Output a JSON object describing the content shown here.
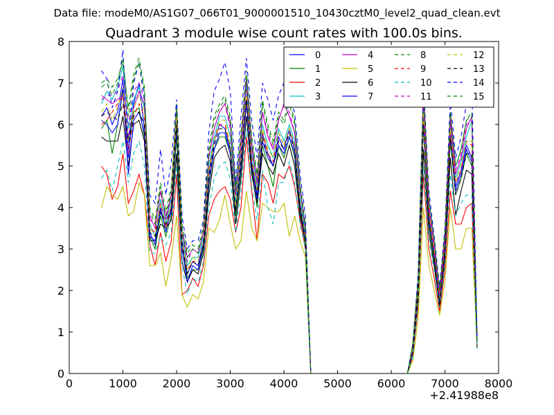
{
  "header_text": "Data file: modeM0/AS1G07_066T01_9000001510_10430cztM0_level2_quad_clean.evt",
  "chart_data": {
    "type": "line",
    "title": "Quadrant 3 module wise count rates with 100.0s bins.",
    "xlabel": "",
    "ylabel": "",
    "x_offset_label": "+2.41988e8",
    "xlim": [
      0,
      8000
    ],
    "ylim": [
      0,
      8
    ],
    "xticks": [
      "0",
      "1000",
      "2000",
      "3000",
      "4000",
      "5000",
      "6000",
      "7000",
      "8000"
    ],
    "yticks": [
      "0",
      "1",
      "2",
      "3",
      "4",
      "5",
      "6",
      "7",
      "8"
    ],
    "grid": false,
    "legend_position": "top-right",
    "legend_columns": 4,
    "x": [
      600,
      700,
      800,
      900,
      1000,
      1100,
      1200,
      1300,
      1400,
      1500,
      1600,
      1700,
      1800,
      1900,
      2000,
      2100,
      2200,
      2300,
      2400,
      2500,
      2600,
      2700,
      2800,
      2900,
      3000,
      3100,
      3200,
      3300,
      3400,
      3500,
      3600,
      3700,
      3800,
      3900,
      4000,
      4100,
      4200,
      4300,
      4400,
      4500,
      4600,
      4700,
      4800,
      4900,
      5000,
      5100,
      5200,
      5300,
      5400,
      5500,
      5600,
      5700,
      5800,
      5900,
      6000,
      6100,
      6200,
      6300,
      6400,
      6500,
      6600,
      6700,
      6800,
      6900,
      7000,
      7100,
      7200,
      7300,
      7400,
      7500,
      7600
    ],
    "series": [
      {
        "name": "0",
        "color": "#0000ff",
        "dash": "solid",
        "values": [
          6.2,
          6.4,
          6.0,
          6.3,
          7.1,
          5.2,
          6.5,
          7.0,
          5.9,
          3.4,
          3.1,
          4.0,
          3.4,
          4.0,
          6.0,
          3.2,
          2.4,
          2.7,
          2.6,
          3.2,
          4.8,
          5.6,
          6.0,
          5.9,
          5.4,
          4.0,
          5.2,
          6.9,
          5.1,
          4.3,
          5.8,
          5.3,
          5.0,
          5.7,
          5.4,
          5.9,
          5.4,
          4.1,
          3.3,
          0,
          0,
          0,
          0,
          0,
          0,
          0,
          0,
          0,
          0,
          0,
          0,
          0,
          0,
          0,
          0,
          0,
          0,
          0,
          0.6,
          2.0,
          6.2,
          3.8,
          2.8,
          1.7,
          3.0,
          5.8,
          4.5,
          4.9,
          5.5,
          5.2,
          0.7
        ]
      },
      {
        "name": "1",
        "color": "#008000",
        "dash": "solid",
        "values": [
          5.9,
          6.1,
          5.3,
          6.0,
          6.8,
          5.6,
          6.3,
          6.4,
          5.7,
          3.3,
          3.0,
          3.8,
          3.3,
          3.8,
          5.7,
          3.0,
          2.3,
          2.5,
          2.5,
          3.0,
          4.5,
          5.4,
          5.7,
          5.7,
          5.3,
          3.8,
          4.9,
          6.6,
          4.9,
          4.0,
          5.5,
          5.0,
          4.5,
          5.5,
          5.2,
          5.7,
          5.2,
          3.9,
          3.1,
          0,
          0,
          0,
          0,
          0,
          0,
          0,
          0,
          0,
          0,
          0,
          0,
          0,
          0,
          0,
          0,
          0,
          0,
          0,
          0.5,
          1.9,
          6.0,
          3.6,
          2.7,
          1.6,
          2.9,
          5.6,
          4.3,
          4.7,
          5.3,
          5.0,
          0.6
        ]
      },
      {
        "name": "2",
        "color": "#ff0000",
        "dash": "solid",
        "values": [
          5.0,
          4.8,
          4.2,
          4.5,
          5.3,
          4.1,
          4.4,
          4.8,
          4.3,
          3.1,
          2.6,
          3.4,
          2.7,
          3.2,
          4.8,
          1.9,
          2.0,
          2.3,
          2.1,
          2.6,
          3.8,
          4.2,
          4.4,
          4.5,
          4.2,
          3.4,
          4.0,
          5.7,
          4.4,
          3.2,
          4.8,
          4.6,
          4.1,
          4.8,
          4.7,
          5.0,
          4.5,
          3.7,
          3.0,
          0,
          0,
          0,
          0,
          0,
          0,
          0,
          0,
          0,
          0,
          0,
          0,
          0,
          0,
          0,
          0,
          0,
          0,
          0,
          0.4,
          1.6,
          4.8,
          3.0,
          2.3,
          1.5,
          2.5,
          4.4,
          3.6,
          3.6,
          4.0,
          4.1,
          0.6
        ]
      },
      {
        "name": "3",
        "color": "#00bfbf",
        "dash": "solid",
        "values": [
          6.5,
          6.8,
          6.6,
          6.9,
          7.4,
          5.9,
          6.6,
          6.9,
          6.4,
          3.6,
          3.3,
          4.2,
          3.6,
          4.2,
          6.4,
          3.3,
          2.6,
          2.8,
          2.8,
          3.3,
          5.0,
          5.7,
          6.2,
          6.2,
          5.7,
          4.1,
          5.4,
          7.0,
          5.3,
          4.5,
          6.0,
          5.5,
          5.2,
          5.9,
          5.6,
          6.0,
          5.6,
          4.2,
          3.4,
          0,
          0,
          0,
          0,
          0,
          0,
          0,
          0,
          0,
          0,
          0,
          0,
          0,
          0,
          0,
          0,
          0,
          0,
          0,
          0.6,
          2.1,
          6.4,
          3.9,
          2.9,
          1.8,
          3.1,
          6.0,
          4.7,
          5.1,
          5.7,
          6.1,
          0.7
        ]
      },
      {
        "name": "4",
        "color": "#bf00bf",
        "dash": "solid",
        "values": [
          6.7,
          6.6,
          6.5,
          6.6,
          6.7,
          5.7,
          6.4,
          6.8,
          6.5,
          3.8,
          3.5,
          4.4,
          3.7,
          4.3,
          6.3,
          3.4,
          2.8,
          3.0,
          2.9,
          3.4,
          5.2,
          5.9,
          6.3,
          6.5,
          6.0,
          4.3,
          5.5,
          7.1,
          5.5,
          4.6,
          6.3,
          5.7,
          5.4,
          6.1,
          6.5,
          6.2,
          5.8,
          4.4,
          3.5,
          0,
          0,
          0,
          0,
          0,
          0,
          0,
          0,
          0,
          0,
          0,
          0,
          0,
          0,
          0,
          0,
          0,
          0,
          0,
          0.6,
          2.2,
          6.6,
          4.0,
          3.0,
          1.9,
          3.2,
          6.1,
          4.8,
          5.2,
          5.9,
          6.2,
          0.8
        ]
      },
      {
        "name": "5",
        "color": "#bfbf00",
        "dash": "solid",
        "values": [
          4.0,
          4.5,
          4.3,
          4.2,
          4.5,
          3.8,
          3.9,
          4.6,
          4.3,
          2.6,
          2.6,
          2.9,
          2.1,
          2.8,
          3.8,
          1.9,
          1.6,
          1.9,
          1.8,
          2.2,
          3.5,
          3.4,
          3.7,
          4.3,
          3.6,
          3.0,
          3.2,
          4.4,
          3.5,
          3.2,
          4.1,
          4.0,
          3.9,
          3.9,
          4.1,
          3.3,
          3.8,
          3.2,
          2.8,
          0,
          0,
          0,
          0,
          0,
          0,
          0,
          0,
          0,
          0,
          0,
          0,
          0,
          0,
          0,
          0,
          0,
          0,
          0,
          0.3,
          1.3,
          4.0,
          2.6,
          2.0,
          1.4,
          2.2,
          4.0,
          3.0,
          3.0,
          3.5,
          3.5,
          0.6
        ]
      },
      {
        "name": "6",
        "color": "#000000",
        "dash": "solid",
        "values": [
          5.7,
          5.6,
          5.6,
          5.6,
          6.2,
          5.0,
          6.0,
          6.1,
          5.6,
          3.2,
          3.2,
          3.6,
          3.5,
          3.7,
          5.3,
          2.7,
          2.2,
          2.5,
          2.4,
          2.9,
          4.3,
          5.2,
          5.4,
          5.5,
          5.1,
          3.6,
          4.7,
          6.2,
          4.8,
          4.1,
          5.3,
          5.0,
          4.8,
          5.3,
          5.0,
          5.5,
          5.0,
          3.8,
          3.2,
          0,
          0,
          0,
          0,
          0,
          0,
          0,
          0,
          0,
          0,
          0,
          0,
          0,
          0,
          0,
          0,
          0,
          0,
          0,
          0.5,
          1.8,
          5.4,
          3.4,
          2.6,
          1.6,
          2.8,
          5.2,
          3.8,
          4.4,
          4.9,
          4.8,
          0.6
        ]
      },
      {
        "name": "7",
        "color": "#0000ff",
        "dash": "solid",
        "values": [
          6.1,
          6.0,
          5.8,
          6.0,
          6.9,
          4.8,
          6.1,
          6.3,
          5.8,
          3.3,
          3.2,
          3.9,
          3.5,
          3.9,
          5.9,
          3.0,
          2.2,
          2.6,
          2.5,
          3.1,
          4.6,
          5.4,
          5.8,
          5.8,
          5.3,
          3.9,
          5.0,
          6.5,
          5.0,
          4.2,
          5.6,
          5.2,
          5.0,
          5.5,
          5.3,
          5.7,
          5.3,
          4.0,
          3.2,
          0,
          0,
          0,
          0,
          0,
          0,
          0,
          0,
          0,
          0,
          0,
          0,
          0,
          0,
          0,
          0,
          0,
          0,
          0,
          0.5,
          2.0,
          6.1,
          3.7,
          2.8,
          1.7,
          3.0,
          5.7,
          4.4,
          4.8,
          5.4,
          5.1,
          0.7
        ]
      },
      {
        "name": "8",
        "color": "#008000",
        "dash": "dashed",
        "values": [
          7.0,
          7.1,
          6.9,
          7.1,
          7.5,
          6.4,
          7.2,
          7.6,
          6.9,
          4.0,
          3.7,
          4.6,
          3.9,
          4.5,
          6.5,
          3.6,
          2.9,
          3.1,
          3.0,
          3.6,
          5.4,
          6.2,
          6.5,
          6.7,
          6.2,
          4.5,
          5.8,
          7.3,
          5.7,
          4.8,
          6.6,
          6.0,
          5.6,
          6.3,
          6.1,
          6.6,
          6.1,
          4.6,
          3.6,
          0,
          0,
          0,
          0,
          0,
          0,
          0,
          0,
          0,
          0,
          0,
          0,
          0,
          0,
          0,
          0,
          0,
          0,
          0,
          0.7,
          2.3,
          6.9,
          4.2,
          3.2,
          2.0,
          3.4,
          6.3,
          5.0,
          5.4,
          6.1,
          6.3,
          0.8
        ]
      },
      {
        "name": "9",
        "color": "#ff0000",
        "dash": "dashed",
        "values": [
          6.0,
          6.1,
          6.3,
          6.5,
          6.7,
          5.3,
          6.2,
          6.5,
          6.2,
          3.5,
          3.4,
          4.1,
          3.5,
          4.0,
          6.1,
          3.1,
          2.5,
          2.7,
          2.7,
          3.2,
          4.8,
          5.6,
          6.0,
          6.0,
          5.5,
          4.0,
          5.2,
          6.8,
          5.1,
          4.4,
          5.8,
          5.3,
          5.1,
          5.8,
          5.5,
          5.9,
          5.5,
          4.1,
          3.3,
          0,
          0,
          0,
          0,
          0,
          0,
          0,
          0,
          0,
          0,
          0,
          0,
          0,
          0,
          0,
          0,
          0,
          0,
          0,
          0.6,
          2.0,
          6.2,
          3.8,
          2.9,
          1.8,
          3.0,
          5.8,
          4.6,
          4.9,
          5.6,
          5.5,
          0.7
        ]
      },
      {
        "name": "10",
        "color": "#00bfbf",
        "dash": "dashed",
        "values": [
          4.7,
          4.9,
          4.4,
          5.0,
          5.6,
          4.6,
          5.3,
          5.6,
          5.0,
          2.9,
          2.9,
          3.3,
          3.1,
          3.4,
          5.0,
          2.6,
          1.9,
          2.3,
          2.2,
          2.7,
          4.0,
          4.7,
          5.0,
          5.1,
          4.7,
          3.4,
          4.4,
          5.9,
          4.5,
          3.7,
          4.9,
          4.0,
          3.6,
          4.6,
          4.6,
          5.1,
          4.6,
          3.6,
          3.0,
          0,
          0,
          0,
          0,
          0,
          0,
          0,
          0,
          0,
          0,
          0,
          0,
          0,
          0,
          0,
          0,
          0,
          0,
          0,
          0.4,
          1.7,
          5.0,
          3.2,
          2.5,
          1.6,
          2.6,
          4.8,
          3.8,
          4.1,
          4.3,
          4.3,
          0.6
        ]
      },
      {
        "name": "11",
        "color": "#bf00bf",
        "dash": "dashed",
        "values": [
          6.6,
          6.7,
          6.7,
          6.8,
          7.2,
          6.0,
          6.8,
          7.0,
          6.6,
          3.7,
          3.6,
          4.4,
          3.8,
          4.3,
          6.4,
          3.4,
          2.7,
          3.0,
          2.9,
          3.4,
          5.2,
          5.9,
          6.3,
          6.5,
          5.9,
          4.3,
          5.6,
          7.1,
          5.4,
          4.6,
          6.3,
          5.8,
          5.4,
          6.1,
          6.5,
          6.3,
          5.8,
          4.4,
          3.5,
          0,
          0,
          0,
          0,
          0,
          0,
          0,
          0,
          0,
          0,
          0,
          0,
          0,
          0,
          0,
          0,
          0,
          0,
          0,
          0.6,
          2.2,
          6.7,
          4.1,
          3.1,
          1.9,
          3.3,
          6.2,
          4.9,
          5.3,
          6.0,
          6.1,
          0.8
        ]
      },
      {
        "name": "12",
        "color": "#bfbf00",
        "dash": "dashed",
        "values": [
          6.3,
          6.5,
          6.1,
          6.4,
          6.9,
          5.6,
          6.4,
          6.7,
          6.3,
          3.5,
          3.3,
          4.1,
          3.5,
          4.1,
          6.2,
          3.2,
          2.5,
          2.8,
          2.7,
          3.2,
          4.9,
          5.6,
          6.1,
          6.1,
          5.5,
          4.0,
          5.3,
          6.8,
          5.2,
          4.4,
          5.9,
          5.4,
          5.2,
          5.8,
          5.5,
          5.9,
          5.5,
          4.1,
          3.3,
          0,
          0,
          0,
          0,
          0,
          0,
          0,
          0,
          0,
          0,
          0,
          0,
          0,
          0,
          0,
          0,
          0,
          0,
          0,
          0.6,
          2.1,
          6.3,
          3.9,
          2.9,
          1.8,
          3.1,
          5.9,
          4.6,
          5.0,
          5.6,
          5.6,
          0.7
        ]
      },
      {
        "name": "13",
        "color": "#000000",
        "dash": "dashed",
        "values": [
          6.2,
          6.3,
          6.2,
          6.1,
          6.5,
          5.5,
          6.2,
          6.3,
          6.0,
          3.4,
          3.3,
          3.9,
          3.6,
          4.0,
          6.0,
          3.1,
          2.4,
          2.7,
          2.6,
          3.1,
          4.7,
          5.5,
          5.9,
          5.9,
          5.4,
          3.9,
          5.1,
          6.6,
          5.0,
          4.3,
          5.7,
          5.2,
          5.0,
          5.6,
          5.4,
          5.8,
          5.4,
          4.0,
          3.2,
          0,
          0,
          0,
          0,
          0,
          0,
          0,
          0,
          0,
          0,
          0,
          0,
          0,
          0,
          0,
          0,
          0,
          0,
          0,
          0.5,
          2.0,
          6.0,
          3.7,
          2.8,
          1.7,
          3.0,
          5.7,
          4.3,
          4.7,
          5.3,
          5.3,
          0.7
        ]
      },
      {
        "name": "14",
        "color": "#0000ff",
        "dash": "dashed",
        "values": [
          7.3,
          7.1,
          6.4,
          6.8,
          7.8,
          5.4,
          7.0,
          7.5,
          6.6,
          4.3,
          4.1,
          5.4,
          4.3,
          5.1,
          6.6,
          3.8,
          3.0,
          3.2,
          3.2,
          3.7,
          5.8,
          6.8,
          7.1,
          7.5,
          6.8,
          4.6,
          6.2,
          7.6,
          6.1,
          5.2,
          7.0,
          6.6,
          6.1,
          6.7,
          7.0,
          6.6,
          6.3,
          4.8,
          3.8,
          0,
          0,
          0,
          0,
          0,
          0,
          0,
          0,
          0,
          0,
          0,
          0,
          0,
          0,
          0,
          0,
          0,
          0,
          0,
          0.7,
          2.4,
          7.0,
          4.4,
          3.3,
          2.1,
          3.5,
          6.6,
          5.2,
          5.7,
          6.5,
          7.0,
          0.8
        ]
      },
      {
        "name": "15",
        "color": "#008000",
        "dash": "dashed",
        "values": [
          6.9,
          7.0,
          6.7,
          7.0,
          7.6,
          6.2,
          7.1,
          7.5,
          6.8,
          3.9,
          3.6,
          4.5,
          3.8,
          4.4,
          6.4,
          3.5,
          2.8,
          3.0,
          2.9,
          3.5,
          5.3,
          6.1,
          6.4,
          6.6,
          6.1,
          4.4,
          5.7,
          7.2,
          5.6,
          4.7,
          6.5,
          5.9,
          5.5,
          6.2,
          6.0,
          6.5,
          6.0,
          4.5,
          3.5,
          0,
          0,
          0,
          0,
          0,
          0,
          0,
          0,
          0,
          0,
          0,
          0,
          0,
          0,
          0,
          0,
          0,
          0,
          0,
          0.7,
          2.3,
          6.8,
          4.2,
          3.2,
          2.0,
          3.4,
          6.3,
          5.0,
          5.4,
          6.1,
          6.2,
          0.8
        ]
      }
    ]
  }
}
